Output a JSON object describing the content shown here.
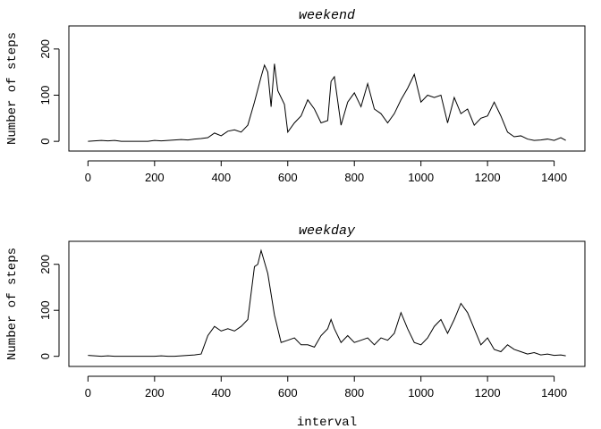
{
  "chart_data": [
    {
      "type": "line",
      "title": "weekend",
      "ylabel": "Number of steps",
      "color": "#000000",
      "x": [
        0,
        20,
        40,
        60,
        80,
        100,
        120,
        140,
        160,
        180,
        200,
        220,
        240,
        260,
        280,
        300,
        320,
        340,
        360,
        380,
        400,
        420,
        440,
        460,
        480,
        500,
        520,
        530,
        540,
        550,
        560,
        570,
        590,
        600,
        620,
        640,
        660,
        680,
        700,
        720,
        730,
        740,
        760,
        780,
        800,
        820,
        840,
        860,
        880,
        900,
        920,
        940,
        960,
        980,
        1000,
        1020,
        1040,
        1060,
        1080,
        1100,
        1120,
        1140,
        1160,
        1180,
        1200,
        1220,
        1240,
        1260,
        1280,
        1300,
        1320,
        1340,
        1360,
        1380,
        1400,
        1420,
        1435
      ],
      "values": [
        0,
        1,
        2,
        1,
        2,
        0,
        0,
        0,
        0,
        0,
        2,
        1,
        2,
        3,
        4,
        3,
        5,
        6,
        8,
        18,
        12,
        22,
        25,
        20,
        35,
        85,
        140,
        165,
        150,
        75,
        168,
        110,
        80,
        20,
        40,
        55,
        90,
        70,
        40,
        45,
        130,
        140,
        35,
        85,
        105,
        75,
        125,
        70,
        60,
        40,
        60,
        90,
        115,
        145,
        85,
        100,
        95,
        100,
        40,
        95,
        60,
        70,
        35,
        50,
        55,
        85,
        55,
        20,
        10,
        12,
        5,
        2,
        3,
        5,
        2,
        8,
        2
      ],
      "xlim": [
        -57.4,
        1492.4
      ],
      "xticks": [
        0,
        200,
        400,
        600,
        800,
        1000,
        1200,
        1400
      ],
      "ylim": [
        -21,
        250
      ],
      "yticks": [
        0,
        100,
        200
      ]
    },
    {
      "type": "line",
      "title": "weekday",
      "ylabel": "Number of steps",
      "xlabel": "interval",
      "color": "#000000",
      "x": [
        0,
        20,
        40,
        60,
        80,
        100,
        120,
        140,
        160,
        180,
        200,
        220,
        240,
        260,
        280,
        300,
        320,
        340,
        360,
        380,
        400,
        420,
        440,
        460,
        480,
        500,
        510,
        520,
        540,
        560,
        580,
        600,
        620,
        640,
        660,
        680,
        700,
        720,
        730,
        740,
        760,
        780,
        800,
        820,
        840,
        860,
        880,
        900,
        920,
        940,
        960,
        980,
        1000,
        1020,
        1040,
        1060,
        1080,
        1100,
        1120,
        1140,
        1160,
        1180,
        1200,
        1220,
        1240,
        1260,
        1280,
        1300,
        1320,
        1340,
        1360,
        1380,
        1400,
        1420,
        1435
      ],
      "values": [
        2,
        1,
        0,
        1,
        0,
        0,
        0,
        0,
        0,
        0,
        0,
        1,
        0,
        0,
        1,
        2,
        3,
        5,
        45,
        65,
        55,
        60,
        55,
        65,
        80,
        195,
        200,
        230,
        180,
        90,
        30,
        35,
        40,
        25,
        25,
        20,
        45,
        60,
        80,
        60,
        30,
        45,
        30,
        35,
        40,
        25,
        40,
        35,
        50,
        95,
        60,
        30,
        25,
        40,
        65,
        80,
        50,
        80,
        115,
        95,
        60,
        25,
        40,
        15,
        10,
        25,
        15,
        10,
        5,
        8,
        3,
        5,
        2,
        3,
        1
      ],
      "xlim": [
        -57.4,
        1492.4
      ],
      "xticks": [
        0,
        200,
        400,
        600,
        800,
        1000,
        1200,
        1400
      ],
      "ylim": [
        -22,
        250
      ],
      "yticks": [
        0,
        100,
        200
      ]
    }
  ]
}
